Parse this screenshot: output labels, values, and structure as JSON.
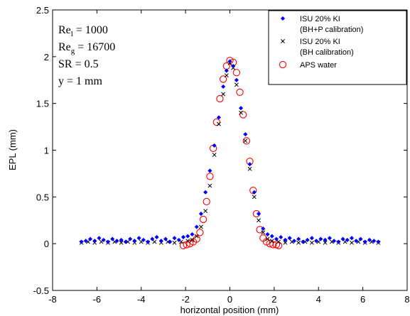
{
  "chart_data": {
    "type": "scatter",
    "xlabel": "horizontal position (mm)",
    "ylabel": "EPL (mm)",
    "xlim": [
      -8,
      8
    ],
    "ylim": [
      -0.5,
      2.5
    ],
    "xticks": [
      -8,
      -6,
      -4,
      -2,
      0,
      2,
      4,
      6,
      8
    ],
    "yticks": [
      -0.5,
      0,
      0.5,
      1,
      1.5,
      2,
      2.5
    ],
    "xtick_labels": [
      "-8",
      "-6",
      "-4",
      "-2",
      "0",
      "2",
      "4",
      "6",
      "8"
    ],
    "ytick_labels": [
      "-0.5",
      "0",
      "0.5",
      "1",
      "1.5",
      "2",
      "2.5"
    ],
    "grid": false,
    "legend_position": "top-right",
    "annotations": [
      {
        "base": "Re",
        "sub": "l",
        "rest": " = 1000"
      },
      {
        "base": "Re",
        "sub": "g",
        "rest": " = 16700"
      },
      {
        "base": "SR = 0.5",
        "sub": "",
        "rest": ""
      },
      {
        "base": "y = 1 mm",
        "sub": "",
        "rest": ""
      }
    ],
    "series": [
      {
        "legend_lines": [
          "ISU 20% KI",
          "(BH+P calibration)"
        ],
        "marker": "diamond",
        "color": "#0000ff",
        "points": [
          [
            -6.7,
            0.02
          ],
          [
            -6.5,
            0.03
          ],
          [
            -6.3,
            0.05
          ],
          [
            -6.1,
            0.03
          ],
          [
            -5.9,
            0.06
          ],
          [
            -5.7,
            0.04
          ],
          [
            -5.5,
            0.02
          ],
          [
            -5.3,
            0.05
          ],
          [
            -5.1,
            0.03
          ],
          [
            -4.9,
            0.04
          ],
          [
            -4.7,
            0.02
          ],
          [
            -4.5,
            0.05
          ],
          [
            -4.3,
            0.03
          ],
          [
            -4.1,
            0.06
          ],
          [
            -3.9,
            0.04
          ],
          [
            -3.7,
            0.02
          ],
          [
            -3.5,
            0.05
          ],
          [
            -3.3,
            0.07
          ],
          [
            -3.1,
            0.03
          ],
          [
            -2.9,
            0.05
          ],
          [
            -2.7,
            0.02
          ],
          [
            -2.5,
            0.06
          ],
          [
            -2.3,
            0.04
          ],
          [
            -2.1,
            0.07
          ],
          [
            -1.9,
            0.08
          ],
          [
            -1.7,
            0.1
          ],
          [
            -1.5,
            0.18
          ],
          [
            -1.3,
            0.32
          ],
          [
            -1.1,
            0.55
          ],
          [
            -0.9,
            0.78
          ],
          [
            -0.7,
            1.05
          ],
          [
            -0.5,
            1.35
          ],
          [
            -0.3,
            1.68
          ],
          [
            -0.15,
            1.85
          ],
          [
            0.0,
            1.95
          ],
          [
            0.15,
            1.9
          ],
          [
            0.3,
            1.75
          ],
          [
            0.5,
            1.45
          ],
          [
            0.7,
            1.17
          ],
          [
            0.9,
            0.85
          ],
          [
            1.1,
            0.55
          ],
          [
            1.3,
            0.32
          ],
          [
            1.5,
            0.16
          ],
          [
            1.7,
            0.1
          ],
          [
            1.9,
            0.08
          ],
          [
            2.1,
            0.05
          ],
          [
            2.3,
            0.07
          ],
          [
            2.5,
            0.04
          ],
          [
            2.7,
            0.06
          ],
          [
            2.9,
            0.03
          ],
          [
            3.1,
            0.05
          ],
          [
            3.3,
            0.02
          ],
          [
            3.5,
            0.04
          ],
          [
            3.7,
            0.06
          ],
          [
            3.9,
            0.03
          ],
          [
            4.1,
            0.05
          ],
          [
            4.3,
            0.04
          ],
          [
            4.5,
            0.06
          ],
          [
            4.7,
            0.03
          ],
          [
            4.9,
            0.02
          ],
          [
            5.1,
            0.05
          ],
          [
            5.3,
            0.04
          ],
          [
            5.5,
            0.06
          ],
          [
            5.7,
            0.03
          ],
          [
            5.9,
            0.05
          ],
          [
            6.1,
            0.02
          ],
          [
            6.3,
            0.04
          ],
          [
            6.5,
            0.03
          ],
          [
            6.7,
            0.02
          ]
        ]
      },
      {
        "legend_lines": [
          "ISU 20% KI",
          "(BH calibration)"
        ],
        "marker": "x",
        "color": "#000000",
        "points": [
          [
            -6.7,
            0.01
          ],
          [
            -6.4,
            0.02
          ],
          [
            -6.1,
            0.01
          ],
          [
            -5.8,
            0.02
          ],
          [
            -5.5,
            0.01
          ],
          [
            -5.2,
            0.02
          ],
          [
            -4.9,
            0.01
          ],
          [
            -4.6,
            0.02
          ],
          [
            -4.3,
            0.01
          ],
          [
            -4.0,
            0.02
          ],
          [
            -3.7,
            0.01
          ],
          [
            -3.4,
            0.02
          ],
          [
            -3.1,
            0.01
          ],
          [
            -2.8,
            0.02
          ],
          [
            -2.5,
            0.01
          ],
          [
            -2.2,
            0.02
          ],
          [
            -1.9,
            0.03
          ],
          [
            -1.7,
            0.04
          ],
          [
            -1.5,
            0.08
          ],
          [
            -1.3,
            0.18
          ],
          [
            -1.1,
            0.35
          ],
          [
            -0.9,
            0.62
          ],
          [
            -0.7,
            0.95
          ],
          [
            -0.5,
            1.28
          ],
          [
            -0.3,
            1.6
          ],
          [
            -0.15,
            1.8
          ],
          [
            0.0,
            1.93
          ],
          [
            0.15,
            1.88
          ],
          [
            0.3,
            1.7
          ],
          [
            0.5,
            1.4
          ],
          [
            0.7,
            1.1
          ],
          [
            0.9,
            0.8
          ],
          [
            1.1,
            0.5
          ],
          [
            1.3,
            0.25
          ],
          [
            1.5,
            0.12
          ],
          [
            1.7,
            0.05
          ],
          [
            1.9,
            0.03
          ],
          [
            2.2,
            0.02
          ],
          [
            2.5,
            0.01
          ],
          [
            2.8,
            0.02
          ],
          [
            3.1,
            0.01
          ],
          [
            3.4,
            0.02
          ],
          [
            3.7,
            0.01
          ],
          [
            4.0,
            0.02
          ],
          [
            4.3,
            0.01
          ],
          [
            4.6,
            0.02
          ],
          [
            4.9,
            0.01
          ],
          [
            5.2,
            0.02
          ],
          [
            5.5,
            0.01
          ],
          [
            5.8,
            0.02
          ],
          [
            6.1,
            0.01
          ],
          [
            6.4,
            0.02
          ],
          [
            6.7,
            0.01
          ]
        ]
      },
      {
        "legend_lines": [
          "APS water"
        ],
        "marker": "circle",
        "color": "#ff0000",
        "points": [
          [
            -2.1,
            -0.02
          ],
          [
            -1.95,
            -0.01
          ],
          [
            -1.8,
            0.0
          ],
          [
            -1.65,
            0.02
          ],
          [
            -1.5,
            0.05
          ],
          [
            -1.35,
            0.12
          ],
          [
            -1.2,
            0.26
          ],
          [
            -1.05,
            0.45
          ],
          [
            -0.9,
            0.72
          ],
          [
            -0.75,
            1.02
          ],
          [
            -0.6,
            1.3
          ],
          [
            -0.45,
            1.55
          ],
          [
            -0.3,
            1.76
          ],
          [
            -0.15,
            1.9
          ],
          [
            0.0,
            1.96
          ],
          [
            0.15,
            1.94
          ],
          [
            0.3,
            1.83
          ],
          [
            0.45,
            1.62
          ],
          [
            0.6,
            1.38
          ],
          [
            0.75,
            1.1
          ],
          [
            0.9,
            0.88
          ],
          [
            1.05,
            0.57
          ],
          [
            1.2,
            0.32
          ],
          [
            1.35,
            0.15
          ],
          [
            1.5,
            0.06
          ],
          [
            1.65,
            0.02
          ],
          [
            1.8,
            0.0
          ],
          [
            1.95,
            -0.01
          ],
          [
            2.1,
            -0.01
          ],
          [
            2.2,
            -0.02
          ]
        ]
      }
    ]
  }
}
